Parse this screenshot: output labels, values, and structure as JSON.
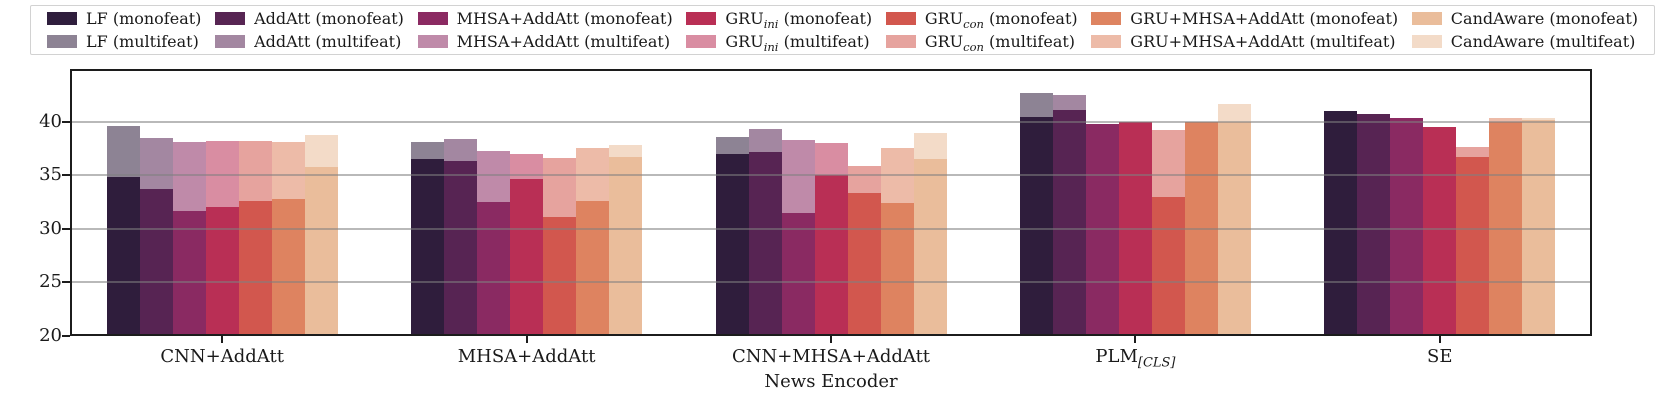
{
  "chart_data": {
    "type": "bar",
    "title": "",
    "xlabel": "News Encoder",
    "ylabel": "",
    "ylim": [
      20,
      44.9
    ],
    "yticks": [
      20,
      25,
      30,
      35,
      40
    ],
    "grid": "horizontal gridlines drawn over bars",
    "legend_position": "top strip, 7 columns x 2 rows",
    "variant_labels": [
      "(monofeat)",
      "(multifeat)"
    ],
    "multifeat_alpha": 0.55,
    "categories": [
      "CNN+AddAtt",
      "MHSA+AddAtt",
      "CNN+MHSA+AddAtt",
      "PLM[CLS]",
      "SE"
    ],
    "categories_rich": [
      {
        "pre": "CNN+AddAtt",
        "sub": ""
      },
      {
        "pre": "MHSA+AddAtt",
        "sub": ""
      },
      {
        "pre": "CNN+MHSA+AddAtt",
        "sub": ""
      },
      {
        "pre": "PLM",
        "sub": "[CLS]"
      },
      {
        "pre": "SE",
        "sub": ""
      }
    ],
    "series": [
      {
        "name_pre": "LF",
        "name_sub": "",
        "color": "#2f1e3d",
        "monofeat": [
          34.8,
          36.5,
          37.0,
          40.4,
          41.0
        ],
        "multifeat": [
          39.6,
          38.1,
          38.6,
          42.7,
          40.7
        ]
      },
      {
        "name_pre": "AddAtt",
        "name_sub": "",
        "color": "#572553",
        "monofeat": [
          33.7,
          36.3,
          37.2,
          41.1,
          40.7
        ],
        "multifeat": [
          38.5,
          38.4,
          39.3,
          42.5,
          40.5
        ]
      },
      {
        "name_pre": "MHSA+AddAtt",
        "name_sub": "",
        "color": "#8b2a62",
        "monofeat": [
          31.7,
          32.5,
          31.5,
          39.8,
          40.3
        ],
        "multifeat": [
          38.1,
          37.3,
          38.3,
          39.6,
          40.1
        ]
      },
      {
        "name_pre": "GRU",
        "name_sub": "ini",
        "color": "#b92f55",
        "monofeat": [
          32.0,
          34.6,
          35.0,
          40.0,
          39.5
        ],
        "multifeat": [
          38.2,
          37.0,
          38.0,
          39.8,
          39.3
        ]
      },
      {
        "name_pre": "GRU",
        "name_sub": "con",
        "color": "#d2574e",
        "monofeat": [
          32.6,
          31.1,
          33.3,
          33.0,
          36.7
        ],
        "multifeat": [
          38.2,
          36.6,
          35.9,
          39.2,
          37.6
        ]
      },
      {
        "name_pre": "GRU+MHSA+AddAtt",
        "name_sub": "",
        "color": "#de8461",
        "monofeat": [
          32.8,
          32.6,
          32.4,
          40.0,
          40.0
        ],
        "multifeat": [
          38.1,
          37.5,
          37.5,
          39.8,
          40.3
        ]
      },
      {
        "name_pre": "CandAware",
        "name_sub": "",
        "color": "#eabd9b",
        "monofeat": [
          35.8,
          36.7,
          36.5,
          40.0,
          40.1
        ],
        "multifeat": [
          38.7,
          37.8,
          38.9,
          41.6,
          40.3
        ]
      }
    ]
  }
}
